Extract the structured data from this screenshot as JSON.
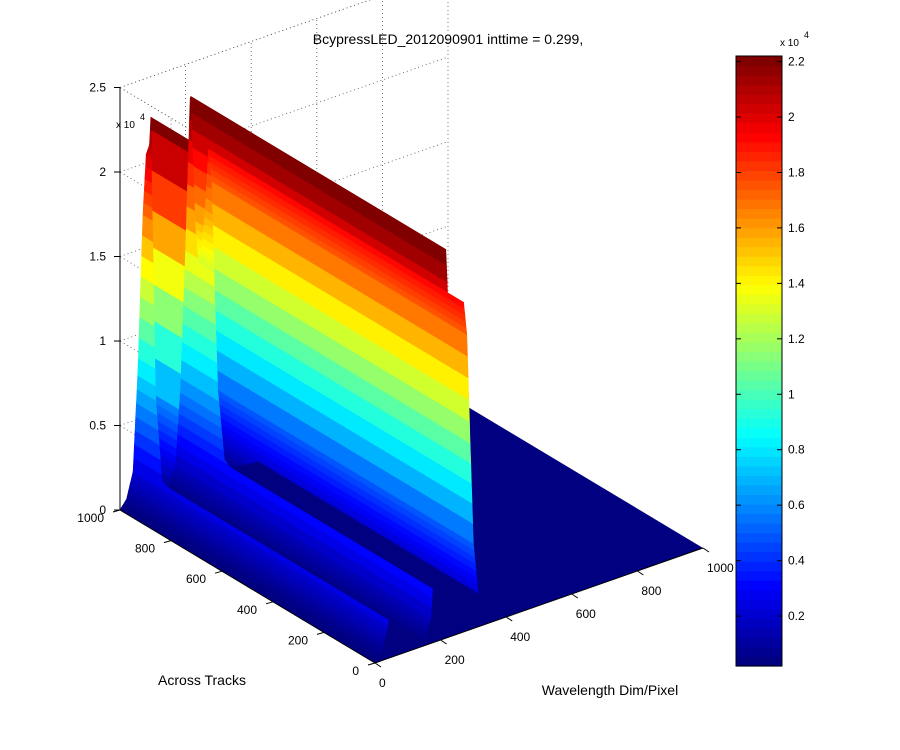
{
  "chart_data": {
    "type": "surface3d",
    "title": "BcypressLED_2012090901 inttime = 0.299,",
    "xlabel": "Wavelength Dim/Pixel",
    "ylabel": "Across Tracks",
    "zlabel": "",
    "x_ticks": [
      "0",
      "200",
      "400",
      "600",
      "800",
      "1000"
    ],
    "y_ticks": [
      "0",
      "200",
      "400",
      "600",
      "800",
      "1000"
    ],
    "z_ticks": [
      "0",
      "0.5",
      "1",
      "1.5",
      "2",
      "2.5"
    ],
    "z_exponent": {
      "base": "x 10",
      "power": "4"
    },
    "xlim": [
      0,
      1000
    ],
    "ylim": [
      0,
      1000
    ],
    "zlim": [
      0,
      25000
    ],
    "grid": true,
    "colormap": "jet",
    "profile": {
      "description_values": "spectrum along wavelength pixel (x), constant across tracks (y)",
      "x": [
        0,
        20,
        40,
        55,
        70,
        80,
        90,
        95,
        100,
        110,
        130,
        150,
        170,
        185,
        200,
        210,
        215,
        220,
        230,
        240,
        250,
        260,
        270,
        280,
        290,
        300,
        320,
        340,
        400,
        1000
      ],
      "z": [
        0,
        500,
        2000,
        8000,
        17000,
        20500,
        21000,
        23000,
        17000,
        6000,
        800,
        300,
        1500,
        6000,
        14000,
        20500,
        23500,
        21000,
        15500,
        13000,
        14000,
        16000,
        19500,
        17500,
        11000,
        5000,
        800,
        200,
        0,
        0
      ]
    }
  },
  "colorbar": {
    "ticks": [
      "0.2",
      "0.4",
      "0.6",
      "0.8",
      "1",
      "1.2",
      "1.4",
      "1.6",
      "1.8",
      "2",
      "2.2"
    ],
    "tick_values": [
      2000,
      4000,
      6000,
      8000,
      10000,
      12000,
      14000,
      16000,
      18000,
      20000,
      22000
    ],
    "range": [
      200,
      22200
    ],
    "exponent": {
      "base": "x 10",
      "power": "4"
    }
  }
}
